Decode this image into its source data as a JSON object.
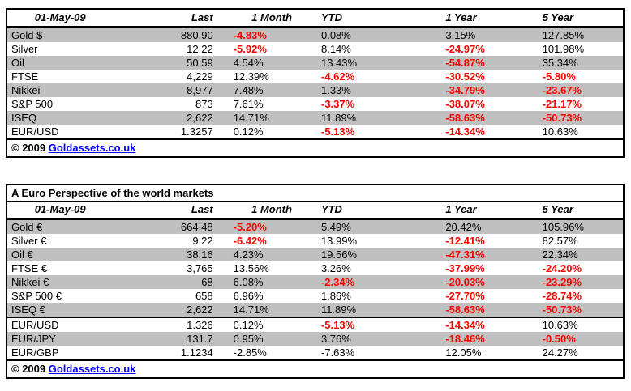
{
  "colors": {
    "stripe_row": "#C0C0C0",
    "negative_value": "#FF0000",
    "link": "#0000FF",
    "border": "#000000",
    "text": "#000000",
    "background": "#FFFFFF"
  },
  "chart_data": [
    {
      "type": "table",
      "name": "world-markets",
      "date_header": "01-May-09",
      "columns": [
        "Last",
        "1 Month",
        "YTD",
        "1 Year",
        "5 Year"
      ],
      "rows": [
        {
          "label": "Gold $",
          "cells": [
            {
              "v": "880.90"
            },
            {
              "v": "-4.83%",
              "red": true
            },
            {
              "v": "0.08%"
            },
            {
              "v": "3.15%"
            },
            {
              "v": "127.85%"
            }
          ]
        },
        {
          "label": "Silver",
          "cells": [
            {
              "v": "12.22"
            },
            {
              "v": "-5.92%",
              "red": true
            },
            {
              "v": "8.14%"
            },
            {
              "v": "-24.97%",
              "red": true
            },
            {
              "v": "101.98%"
            }
          ]
        },
        {
          "label": "Oil",
          "cells": [
            {
              "v": "50.59"
            },
            {
              "v": "4.54%"
            },
            {
              "v": "13.43%"
            },
            {
              "v": "-54.87%",
              "red": true
            },
            {
              "v": "35.34%"
            }
          ]
        },
        {
          "label": "FTSE",
          "cells": [
            {
              "v": "4,229"
            },
            {
              "v": "12.39%"
            },
            {
              "v": "-4.62%",
              "red": true
            },
            {
              "v": "-30.52%",
              "red": true
            },
            {
              "v": "-5.80%",
              "red": true
            }
          ]
        },
        {
          "label": "Nikkei",
          "cells": [
            {
              "v": "8,977"
            },
            {
              "v": "7.48%"
            },
            {
              "v": "1.33%"
            },
            {
              "v": "-34.79%",
              "red": true
            },
            {
              "v": "-23.67%",
              "red": true
            }
          ]
        },
        {
          "label": "S&P 500",
          "cells": [
            {
              "v": "873"
            },
            {
              "v": "7.61%"
            },
            {
              "v": "-3.37%",
              "red": true
            },
            {
              "v": "-38.07%",
              "red": true
            },
            {
              "v": "-21.17%",
              "red": true
            }
          ]
        },
        {
          "label": "ISEQ",
          "cells": [
            {
              "v": "2,622"
            },
            {
              "v": "14.71%"
            },
            {
              "v": "11.89%"
            },
            {
              "v": "-58.63%",
              "red": true
            },
            {
              "v": "-50.73%",
              "red": true
            }
          ]
        },
        {
          "label": "EUR/USD",
          "cells": [
            {
              "v": "1.3257"
            },
            {
              "v": "0.12%"
            },
            {
              "v": "-5.13%",
              "red": true
            },
            {
              "v": "-14.34%",
              "red": true
            },
            {
              "v": "10.63%"
            }
          ]
        }
      ],
      "footer": {
        "copyright": "© 2009",
        "link_text": "Goldassets.co.uk"
      }
    },
    {
      "type": "table",
      "name": "euro-perspective",
      "title": "A Euro Perspective of the world markets",
      "date_header": "01-May-09",
      "columns": [
        "Last",
        "1 Month",
        "YTD",
        "1 Year",
        "5 Year"
      ],
      "rows": [
        {
          "label": "Gold €",
          "cells": [
            {
              "v": "664.48"
            },
            {
              "v": "-5.20%",
              "red": true
            },
            {
              "v": "5.49%"
            },
            {
              "v": "20.42%"
            },
            {
              "v": "105.96%"
            }
          ]
        },
        {
          "label": "Silver €",
          "cells": [
            {
              "v": "9.22"
            },
            {
              "v": "-6.42%",
              "red": true
            },
            {
              "v": "13.99%"
            },
            {
              "v": "-12.41%",
              "red": true
            },
            {
              "v": "82.57%"
            }
          ]
        },
        {
          "label": "Oil €",
          "cells": [
            {
              "v": "38.16"
            },
            {
              "v": "4.23%"
            },
            {
              "v": "19.56%"
            },
            {
              "v": "-47.31%",
              "red": true
            },
            {
              "v": "22.34%"
            }
          ]
        },
        {
          "label": "FTSE €",
          "cells": [
            {
              "v": "3,765"
            },
            {
              "v": "13.56%"
            },
            {
              "v": "3.26%"
            },
            {
              "v": "-37.99%",
              "red": true
            },
            {
              "v": "-24.20%",
              "red": true
            }
          ]
        },
        {
          "label": "Nikkei €",
          "cells": [
            {
              "v": "68"
            },
            {
              "v": "6.08%"
            },
            {
              "v": "-2.34%",
              "red": true
            },
            {
              "v": "-20.03%",
              "red": true
            },
            {
              "v": "-23.29%",
              "red": true
            }
          ]
        },
        {
          "label": "S&P 500 €",
          "cells": [
            {
              "v": "658"
            },
            {
              "v": "6.96%"
            },
            {
              "v": "1.86%"
            },
            {
              "v": "-27.70%",
              "red": true
            },
            {
              "v": "-28.74%",
              "red": true
            }
          ]
        },
        {
          "label": "ISEQ €",
          "divider_below": true,
          "cells": [
            {
              "v": "2,622"
            },
            {
              "v": "14.71%"
            },
            {
              "v": "11.89%"
            },
            {
              "v": "-58.63%",
              "red": true
            },
            {
              "v": "-50.73%",
              "red": true
            }
          ]
        },
        {
          "label": "EUR/USD",
          "cells": [
            {
              "v": "1.326"
            },
            {
              "v": "0.12%"
            },
            {
              "v": "-5.13%",
              "red": true
            },
            {
              "v": "-14.34%",
              "red": true
            },
            {
              "v": "10.63%"
            }
          ]
        },
        {
          "label": "EUR/JPY",
          "cells": [
            {
              "v": "131.7"
            },
            {
              "v": "0.95%"
            },
            {
              "v": "3.76%"
            },
            {
              "v": "-18.46%",
              "red": true
            },
            {
              "v": "-0.50%",
              "red": true
            }
          ]
        },
        {
          "label": "EUR/GBP",
          "cells": [
            {
              "v": "1.1234"
            },
            {
              "v": "-2.85%"
            },
            {
              "v": "-7.63%"
            },
            {
              "v": "12.05%"
            },
            {
              "v": "24.27%"
            }
          ]
        }
      ],
      "footer": {
        "copyright": "© 2009",
        "link_text": "Goldassets.co.uk"
      }
    }
  ]
}
